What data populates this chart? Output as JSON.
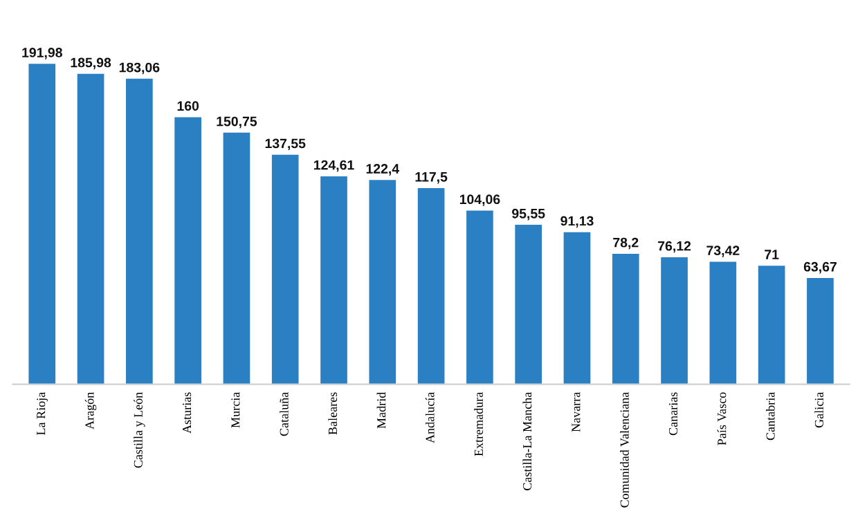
{
  "chart_data": {
    "type": "bar",
    "color": "#2a80c2",
    "categories": [
      "La Rioja",
      "Aragón",
      "Castilla y León",
      "Asturias",
      "Murcia",
      "Cataluña",
      "Baleares",
      "Madrid",
      "Andalucía",
      "Extremadura",
      "Castilla-La Mancha",
      "Navarra",
      "Comunidad Valenciana",
      "Canarias",
      "País Vasco",
      "Cantabria",
      "Galicia"
    ],
    "values": [
      191.98,
      185.98,
      183.06,
      160,
      150.75,
      137.55,
      124.61,
      122.4,
      117.5,
      104.06,
      95.55,
      91.13,
      78.2,
      76.12,
      73.42,
      71,
      63.67
    ],
    "value_labels": [
      "191,98",
      "185,98",
      "183,06",
      "160",
      "150,75",
      "137,55",
      "124,61",
      "122,4",
      "117,5",
      "104,06",
      "95,55",
      "91,13",
      "78,2",
      "76,12",
      "73,42",
      "71",
      "63,67"
    ],
    "grid": false,
    "legend": false
  }
}
